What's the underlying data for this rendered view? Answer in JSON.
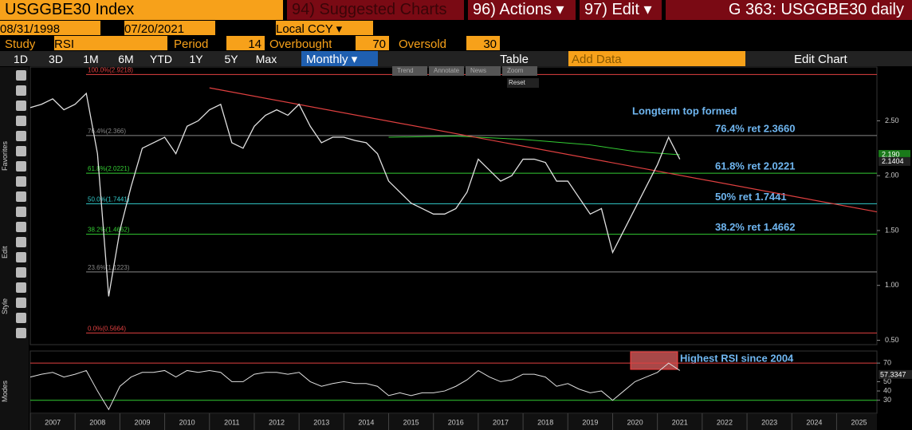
{
  "toolbar": {
    "security": "USGGBE30 Index",
    "suggested": "94) Suggested Charts",
    "actions": "96) Actions",
    "edit": "97) Edit",
    "page_title": "G 363: USGGBE30 daily"
  },
  "range": {
    "start": "08/31/1998",
    "end": "07/20/2021",
    "currency": "Local CCY"
  },
  "study": {
    "label": "Study",
    "name": "RSI",
    "period_label": "Period",
    "period": 14,
    "overbought_label": "Overbought",
    "overbought": 70,
    "oversold_label": "Oversold",
    "oversold": 30
  },
  "periods": [
    "1D",
    "3D",
    "1M",
    "6M",
    "YTD",
    "1Y",
    "5Y",
    "Max"
  ],
  "frequency": "Monthly",
  "table": "Table",
  "add_data": "Add Data",
  "edit_chart": "Edit Chart",
  "side_labels": [
    "Favorites",
    "Edit",
    "Style",
    "Modes"
  ],
  "overlay_menu": [
    "Trend",
    "Annotate",
    "News",
    "Zoom",
    "Reset"
  ],
  "chart": {
    "type": "line",
    "color": "#e0e0e0",
    "x": [
      2007,
      2007.25,
      2007.5,
      2007.75,
      2008,
      2008.25,
      2008.5,
      2008.75,
      2009,
      2009.25,
      2009.5,
      2009.75,
      2010,
      2010.25,
      2010.5,
      2010.75,
      2011,
      2011.25,
      2011.5,
      2011.75,
      2012,
      2012.25,
      2012.5,
      2012.75,
      2013,
      2013.25,
      2013.5,
      2013.75,
      2014,
      2014.25,
      2014.5,
      2014.75,
      2015,
      2015.25,
      2015.5,
      2015.75,
      2016,
      2016.25,
      2016.5,
      2016.75,
      2017,
      2017.25,
      2017.5,
      2017.75,
      2018,
      2018.25,
      2018.5,
      2018.75,
      2019,
      2019.25,
      2019.5,
      2019.75,
      2020,
      2020.25,
      2020.5,
      2020.75,
      2021,
      2021.25,
      2021.5
    ],
    "values": [
      2.62,
      2.65,
      2.7,
      2.6,
      2.65,
      2.75,
      2.2,
      0.9,
      1.5,
      1.9,
      2.25,
      2.3,
      2.35,
      2.2,
      2.45,
      2.5,
      2.6,
      2.65,
      2.3,
      2.25,
      2.45,
      2.55,
      2.6,
      2.55,
      2.65,
      2.45,
      2.3,
      2.35,
      2.35,
      2.32,
      2.3,
      2.2,
      1.95,
      1.85,
      1.75,
      1.7,
      1.65,
      1.65,
      1.7,
      1.85,
      2.15,
      2.05,
      1.95,
      2.0,
      2.15,
      2.15,
      2.12,
      1.95,
      1.95,
      1.8,
      1.65,
      1.7,
      1.3,
      1.5,
      1.7,
      1.9,
      2.1,
      2.35,
      2.15
    ],
    "xlim": [
      2007,
      2025.9
    ],
    "xticks": [
      2007,
      2008,
      2009,
      2010,
      2011,
      2012,
      2013,
      2014,
      2015,
      2016,
      2017,
      2018,
      2019,
      2020,
      2021,
      2022,
      2023,
      2024,
      2025
    ],
    "ylim": [
      0.46,
      2.99
    ],
    "yticks": [
      {
        "value": 0.5,
        "label": "0.50"
      },
      {
        "value": 1,
        "label": "1.00"
      },
      {
        "value": 1.5,
        "label": "1.50"
      },
      {
        "value": 2,
        "label": "2.00"
      },
      {
        "value": 2.5,
        "label": "2.50"
      }
    ],
    "last_price": 2.1404,
    "moving_average": {
      "color": "#33cc33",
      "x": [
        2015,
        2016.5,
        2018,
        2019.5,
        2020.5,
        2021.5
      ],
      "values": [
        2.35,
        2.36,
        2.33,
        2.28,
        2.22,
        2.19
      ],
      "last": 2.19,
      "last_label": "2.190"
    },
    "trendline": {
      "color": "#e04040",
      "x": [
        2011,
        2025.9
      ],
      "values": [
        2.8,
        1.67
      ]
    },
    "fib_levels": [
      {
        "label": "100.0%(2.9218)",
        "value": 2.9218,
        "color": "#e04040"
      },
      {
        "label": "76.4%(2.366)",
        "value": 2.366,
        "color": "#888888",
        "right_label": "76.4% ret 2.3660"
      },
      {
        "label": "61.8%(2.0221)",
        "value": 2.0221,
        "color": "#33cc33",
        "right_label": "61.8% ret 2.0221"
      },
      {
        "label": "50.0%(1.7441)",
        "value": 1.7441,
        "color": "#33cccc",
        "right_label": "50% ret 1.7441"
      },
      {
        "label": "38.2%(1.4662)",
        "value": 1.4662,
        "color": "#33cc33",
        "right_label": "38.2% ret 1.4662"
      },
      {
        "label": "23.6%(1.1223)",
        "value": 1.1223,
        "color": "#888888"
      },
      {
        "label": "0.0%(0.5664)",
        "value": 0.5664,
        "color": "#e04040"
      }
    ],
    "annotation": "Longterm top formed",
    "rsi": {
      "color": "#e0e0e0",
      "values": [
        55,
        58,
        60,
        55,
        58,
        62,
        40,
        20,
        45,
        55,
        60,
        60,
        62,
        55,
        62,
        60,
        62,
        60,
        50,
        50,
        58,
        60,
        60,
        58,
        60,
        50,
        45,
        48,
        50,
        48,
        48,
        45,
        35,
        38,
        35,
        38,
        38,
        40,
        45,
        52,
        62,
        55,
        50,
        52,
        58,
        58,
        55,
        45,
        48,
        42,
        38,
        40,
        30,
        40,
        50,
        55,
        60,
        70,
        62
      ],
      "ylim": [
        16,
        83
      ],
      "yticks": [
        30,
        40,
        50,
        70
      ],
      "last": 57.3347,
      "highlight": {
        "x": [
          2020.4,
          2021.45
        ],
        "annotation": "Highest RSI since 2004"
      }
    }
  }
}
